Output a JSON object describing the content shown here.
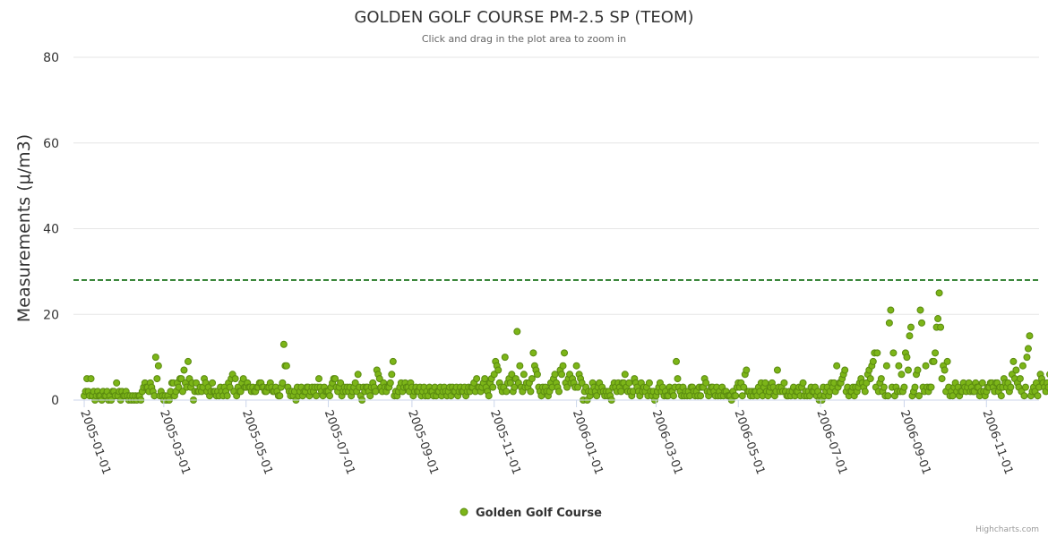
{
  "chart_data": {
    "type": "scatter",
    "title": "GOLDEN GOLF COURSE PM-2.5 SP (TEOM)",
    "subtitle": "Click and drag in the plot area to zoom in",
    "ylabel": "Measurements (μ/m3)",
    "xlabel": "",
    "ylim": [
      0,
      80
    ],
    "yticks": [
      "0",
      "20",
      "40",
      "60",
      "80"
    ],
    "xlim": [
      "2004-12-24",
      "2006-12-10"
    ],
    "xticks": [
      "2005-01-01",
      "2005-03-01",
      "2005-05-01",
      "2005-07-01",
      "2005-09-01",
      "2005-11-01",
      "2006-01-01",
      "2006-03-01",
      "2006-05-01",
      "2006-07-01",
      "2006-09-01",
      "2006-11-01"
    ],
    "threshold": {
      "value": 28,
      "color": "#006400",
      "style": "dashed"
    },
    "series": [
      {
        "name": "Golden Golf Course",
        "color": "#7cb518",
        "border_color": "#5a8a10",
        "start_date": "2005-01-01",
        "step_days": 1,
        "values": [
          1,
          2,
          5,
          2,
          1,
          5,
          1,
          2,
          0,
          1,
          2,
          1,
          1,
          0,
          2,
          1,
          1,
          2,
          0,
          1,
          0,
          2,
          2,
          1,
          4,
          1,
          2,
          0,
          2,
          1,
          1,
          2,
          1,
          0,
          1,
          0,
          1,
          0,
          1,
          0,
          1,
          1,
          0,
          2,
          3,
          4,
          3,
          3,
          2,
          4,
          3,
          2,
          1,
          10,
          5,
          8,
          1,
          2,
          1,
          0,
          1,
          0,
          1,
          0,
          2,
          4,
          4,
          1,
          2,
          4,
          3,
          5,
          5,
          2,
          7,
          4,
          3,
          9,
          5,
          3,
          4,
          0,
          2,
          4,
          2,
          2,
          3,
          2,
          3,
          5,
          4,
          2,
          3,
          1,
          2,
          4,
          2,
          2,
          1,
          2,
          1,
          3,
          2,
          1,
          3,
          2,
          1,
          4,
          3,
          5,
          6,
          2,
          5,
          1,
          3,
          2,
          2,
          4,
          5,
          3,
          3,
          4,
          3,
          3,
          2,
          3,
          2,
          2,
          3,
          3,
          4,
          4,
          3,
          3,
          2,
          2,
          3,
          3,
          4,
          3,
          2,
          2,
          3,
          2,
          1,
          1,
          3,
          4,
          13,
          8,
          8,
          3,
          2,
          1,
          2,
          1,
          2,
          0,
          3,
          1,
          2,
          3,
          1,
          2,
          2,
          3,
          3,
          1,
          2,
          3,
          2,
          3,
          1,
          3,
          5,
          3,
          2,
          1,
          3,
          2,
          2,
          2,
          1,
          3,
          4,
          5,
          5,
          3,
          2,
          3,
          4,
          1,
          2,
          3,
          2,
          3,
          2,
          3,
          1,
          2,
          3,
          4,
          2,
          6,
          3,
          1,
          0,
          3,
          2,
          3,
          3,
          2,
          1,
          3,
          4,
          3,
          2,
          7,
          6,
          5,
          3,
          2,
          4,
          3,
          2,
          3,
          3,
          4,
          6,
          9,
          1,
          2,
          1,
          2,
          3,
          4,
          2,
          3,
          4,
          3,
          3,
          2,
          4,
          3,
          1,
          2,
          3,
          2,
          2,
          3,
          1,
          2,
          3,
          1,
          2,
          1,
          3,
          2,
          2,
          1,
          3,
          1,
          2,
          2,
          3,
          1,
          2,
          3,
          2,
          1,
          2,
          3,
          1,
          3,
          2,
          2,
          3,
          1,
          2,
          3,
          2,
          2,
          3,
          1,
          2,
          3,
          2,
          3,
          3,
          4,
          2,
          5,
          3,
          3,
          2,
          3,
          4,
          5,
          3,
          2,
          1,
          4,
          5,
          3,
          6,
          9,
          8,
          7,
          4,
          3,
          2,
          3,
          10,
          2,
          4,
          5,
          4,
          6,
          2,
          3,
          5,
          16,
          4,
          8,
          3,
          2,
          6,
          3,
          4,
          3,
          4,
          2,
          5,
          11,
          8,
          7,
          6,
          3,
          2,
          1,
          3,
          2,
          3,
          2,
          1,
          2,
          4,
          3,
          5,
          6,
          4,
          3,
          2,
          7,
          6,
          8,
          11,
          4,
          3,
          5,
          6,
          4,
          5,
          4,
          3,
          8,
          3,
          6,
          5,
          4,
          0,
          2,
          3,
          0,
          2,
          1,
          2,
          4,
          3,
          2,
          1,
          3,
          4,
          2,
          3,
          2,
          1,
          2,
          1,
          2,
          1,
          0,
          3,
          4,
          3,
          2,
          4,
          3,
          2,
          4,
          4,
          6,
          3,
          2,
          4,
          2,
          1,
          2,
          5,
          4,
          3,
          2,
          1,
          4,
          2,
          3,
          2,
          3,
          1,
          4,
          2,
          1,
          2,
          0,
          1,
          2,
          3,
          4,
          2,
          3,
          1,
          2,
          1,
          1,
          3,
          2,
          2,
          1,
          3,
          9,
          5,
          3,
          2,
          1,
          3,
          1,
          2,
          1,
          2,
          1,
          3,
          3,
          2,
          1,
          2,
          1,
          3,
          1,
          3,
          3,
          5,
          4,
          2,
          1,
          2,
          3,
          3,
          2,
          1,
          3,
          1,
          2,
          1,
          3,
          1,
          2,
          2,
          1,
          1,
          1,
          0,
          2,
          1,
          1,
          3,
          4,
          3,
          4,
          1,
          3,
          6,
          7,
          2,
          2,
          1,
          2,
          1,
          2,
          2,
          1,
          3,
          2,
          4,
          1,
          3,
          4,
          2,
          1,
          2,
          3,
          4,
          3,
          1,
          2,
          7,
          3,
          2,
          3,
          2,
          4,
          2,
          1,
          1,
          2,
          1,
          2,
          3,
          1,
          2,
          2,
          3,
          1,
          3,
          4,
          1,
          2,
          1,
          2,
          1,
          3,
          2,
          2,
          3,
          1,
          2,
          0,
          1,
          0,
          3,
          1,
          2,
          3,
          1,
          2,
          4,
          3,
          4,
          2,
          8,
          3,
          4,
          4,
          5,
          6,
          7,
          2,
          3,
          1,
          2,
          2,
          3,
          1,
          3,
          2,
          3,
          4,
          5,
          4,
          3,
          2,
          4,
          6,
          7,
          5,
          8,
          9,
          11,
          3,
          11,
          2,
          4,
          5,
          2,
          3,
          1,
          8,
          1,
          18,
          21,
          3,
          11,
          1,
          3,
          2,
          8,
          2,
          6,
          2,
          3,
          11,
          10,
          7,
          15,
          17,
          1,
          2,
          3,
          6,
          7,
          1,
          21,
          18,
          3,
          2,
          8,
          3,
          2,
          3,
          3,
          9,
          9,
          11,
          17,
          19,
          25,
          17,
          5,
          8,
          7,
          2,
          9,
          3,
          1,
          2,
          1,
          3,
          4,
          2,
          3,
          1,
          2,
          2,
          4,
          3,
          2,
          3,
          4,
          2,
          3,
          2,
          2,
          4,
          3,
          3,
          1,
          2,
          4,
          2,
          1,
          2,
          3,
          3,
          4,
          4,
          3,
          2,
          4,
          4,
          2,
          3,
          1,
          3,
          5,
          4,
          3,
          4,
          2,
          3,
          6,
          9,
          5,
          7,
          4,
          3,
          5,
          2,
          8,
          1,
          3,
          10,
          12,
          15,
          1,
          2,
          3,
          2,
          4,
          1,
          3,
          6,
          5,
          4,
          3,
          2,
          4,
          3,
          6,
          2,
          3,
          1,
          3,
          2,
          4,
          3,
          3
        ]
      }
    ],
    "legend": {
      "position": "bottom-center"
    }
  },
  "credits": "Highcharts.com"
}
